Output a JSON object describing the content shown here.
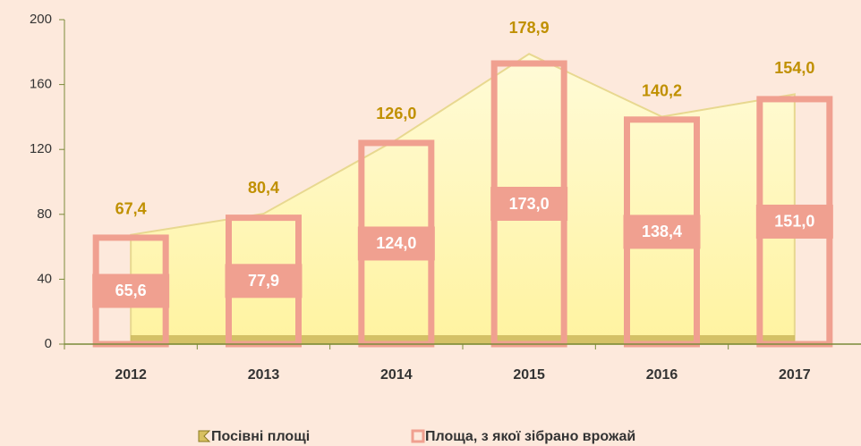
{
  "chart_data": {
    "type": "combo",
    "categories": [
      "2012",
      "2013",
      "2014",
      "2015",
      "2016",
      "2017"
    ],
    "series": [
      {
        "name": "Посівні площі",
        "type": "area",
        "color": "#fff3a8",
        "values": [
          67.4,
          80.4,
          126.0,
          178.9,
          140.2,
          154.0
        ],
        "value_labels": [
          "67,4",
          "80,4",
          "126,0",
          "178,9",
          "140,2",
          "154,0"
        ]
      },
      {
        "name": "Площа, з якої зібрано врожай",
        "type": "bar",
        "color": "#f0a090",
        "values": [
          65.6,
          77.9,
          124.0,
          173.0,
          138.4,
          151.0
        ],
        "value_labels": [
          "65,6",
          "77,9",
          "124,0",
          "173,0",
          "138,4",
          "151,0"
        ]
      }
    ],
    "ylim": [
      0,
      200
    ],
    "yticks": [
      0,
      40,
      80,
      120,
      160,
      200
    ],
    "legend": "bottom"
  }
}
